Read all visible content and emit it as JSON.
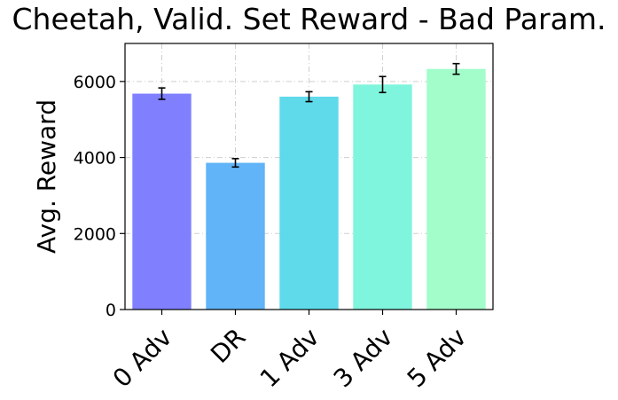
{
  "chart_data": {
    "type": "bar",
    "title": "Cheetah, Valid. Set Reward - Bad Param.",
    "xlabel": "",
    "ylabel": "Avg. Reward",
    "categories": [
      "0 Adv",
      "DR",
      "1 Adv",
      "3 Adv",
      "5 Adv"
    ],
    "values": [
      5680,
      3860,
      5600,
      5920,
      6330
    ],
    "errors": [
      150,
      110,
      130,
      210,
      140
    ],
    "colors": [
      "#8080ff",
      "#60b4f7",
      "#5fdaea",
      "#80f5dd",
      "#a2fdca"
    ],
    "ylim": [
      0,
      7000
    ],
    "yticks": [
      0,
      2000,
      4000,
      6000
    ],
    "grid": true
  }
}
